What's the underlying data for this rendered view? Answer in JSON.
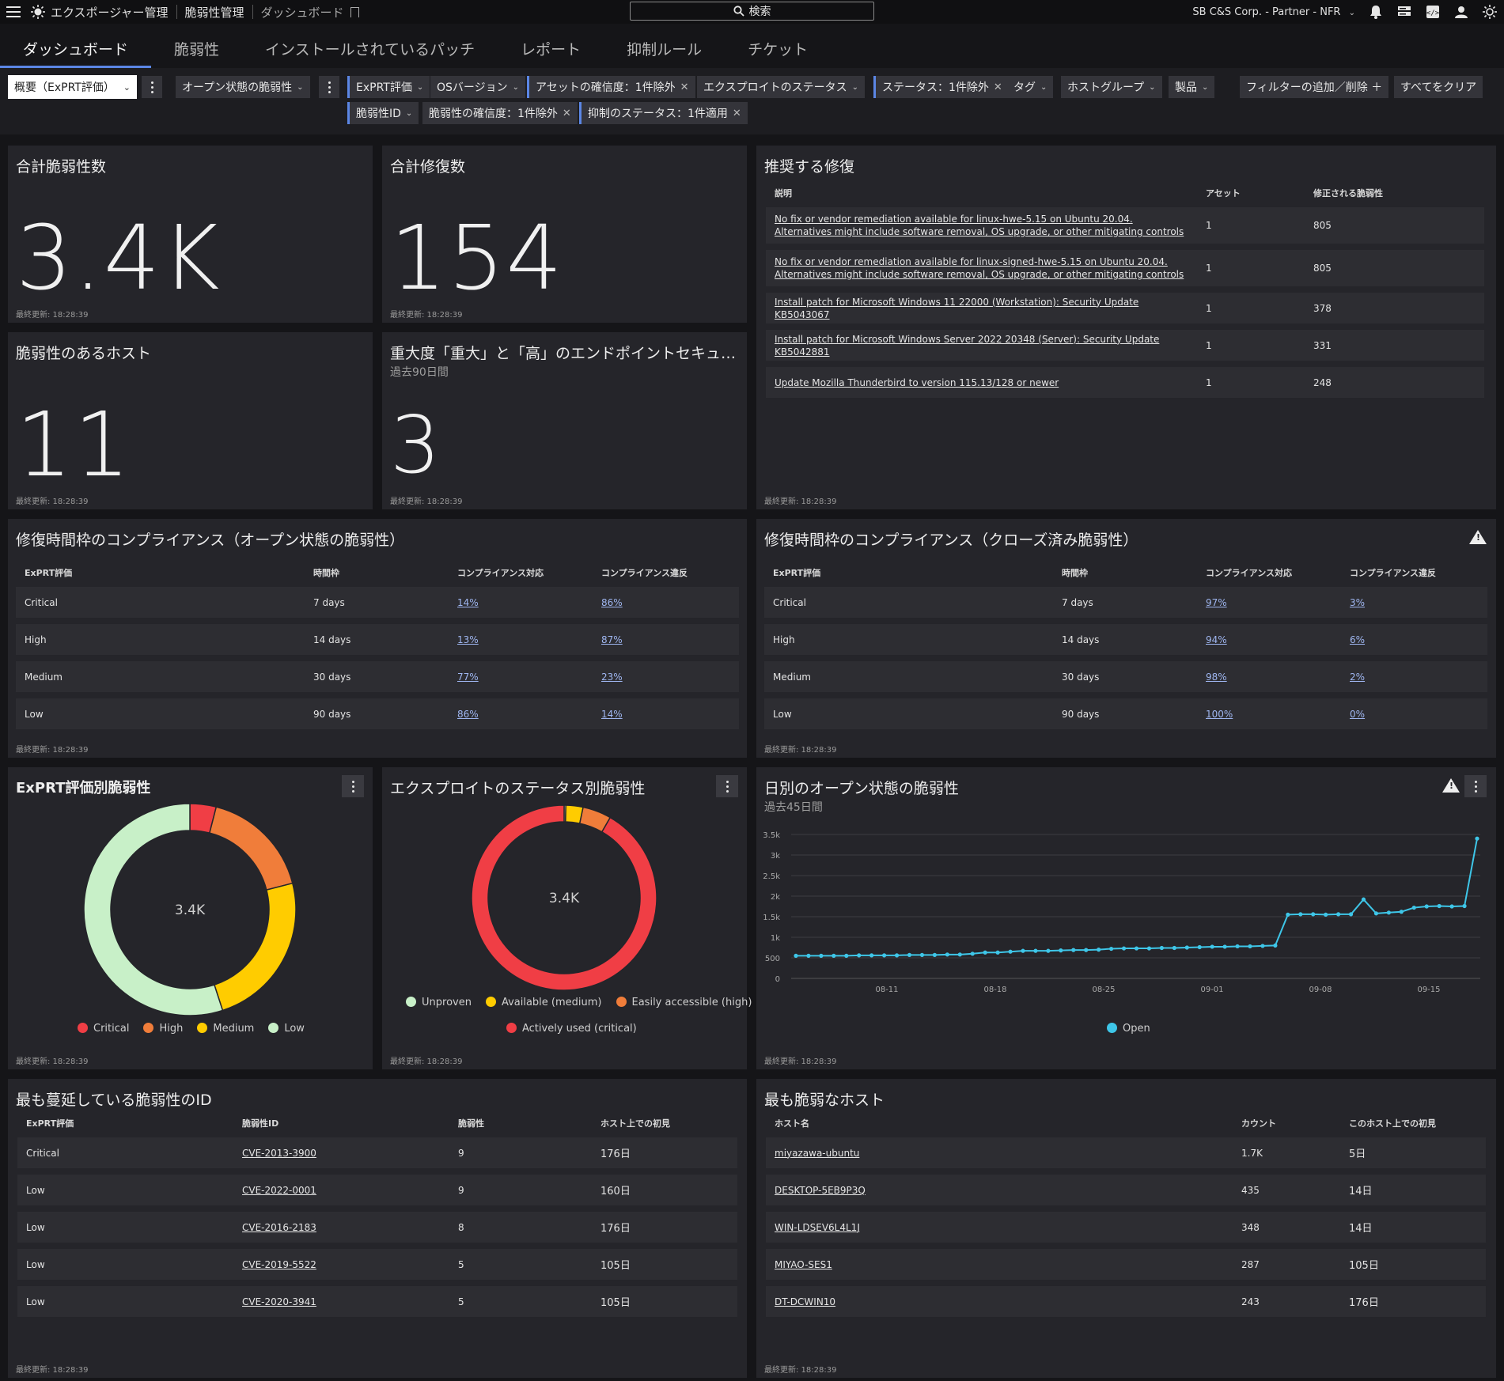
{
  "topbar": {
    "app_name": "エクスポージャー管理",
    "section": "脆弱性管理",
    "page": "ダッシュボード",
    "search_label": "検索",
    "org": "SB C&S Corp. - Partner - NFR"
  },
  "tabs": [
    "ダッシュボード",
    "脆弱性",
    "インストールされているパッチ",
    "レポート",
    "抑制ルール",
    "チケット"
  ],
  "filters": {
    "view_select": "概要（ExPRT評価）",
    "open_vulns": "オープン状態の脆弱性",
    "chips": {
      "exprt": "ExPRT評価",
      "os_version": "OSバージョン",
      "asset_confidence": "アセットの確信度：1件除外",
      "exploit_status": "エクスプロイトのステータス",
      "status": "ステータス：1件除外",
      "tag": "タグ",
      "host_group": "ホストグループ",
      "product": "製品",
      "vuln_id": "脆弱性ID",
      "vuln_confidence": "脆弱性の確信度：1件除外",
      "suppression_status": "抑制のステータス：1件適用"
    },
    "add_remove": "フィルターの追加／削除 ＋",
    "clear_all": "すべてをクリア"
  },
  "updated_label": "最終更新: 18:28:39",
  "cards": {
    "total_vulns": {
      "title": "合計脆弱性数",
      "value": "3.4K"
    },
    "total_remediations": {
      "title": "合計修復数",
      "value": "154"
    },
    "vulnerable_hosts": {
      "title": "脆弱性のあるホスト",
      "value": "11"
    },
    "critical_high": {
      "title": "重大度「重大」と「高」のエンドポイントセキュリ…",
      "subtitle": "過去90日間",
      "value": "3"
    }
  },
  "recommended": {
    "title": "推奨する修復",
    "headers": [
      "説明",
      "アセット",
      "修正される脆弱性"
    ],
    "rows": [
      {
        "desc": "No fix or vendor remediation available for linux-hwe-5.15 on Ubuntu 20.04. Alternatives might include software removal, OS upgrade, or other mitigating controls",
        "assets": "1",
        "fixed": "805"
      },
      {
        "desc": "No fix or vendor remediation available for linux-signed-hwe-5.15 on Ubuntu 20.04. Alternatives might include software removal, OS upgrade, or other mitigating controls",
        "assets": "1",
        "fixed": "805"
      },
      {
        "desc": "Install patch for Microsoft Windows 11 22000 (Workstation): Security Update KB5043067",
        "assets": "1",
        "fixed": "378"
      },
      {
        "desc": "Install patch for Microsoft Windows Server 2022 20348 (Server): Security Update KB5042881",
        "assets": "1",
        "fixed": "331"
      },
      {
        "desc": "Update Mozilla Thunderbird to version 115.13/128 or newer",
        "assets": "1",
        "fixed": "248"
      }
    ]
  },
  "compliance_open": {
    "title": "修復時間枠のコンプライアンス（オープン状態の脆弱性）",
    "headers": [
      "ExPRT評価",
      "時間枠",
      "コンプライアンス対応",
      "コンプライアンス違反"
    ],
    "rows": [
      [
        "Critical",
        "7 days",
        "14%",
        "86%"
      ],
      [
        "High",
        "14 days",
        "13%",
        "87%"
      ],
      [
        "Medium",
        "30 days",
        "77%",
        "23%"
      ],
      [
        "Low",
        "90 days",
        "86%",
        "14%"
      ]
    ]
  },
  "compliance_closed": {
    "title": "修復時間枠のコンプライアンス（クローズ済み脆弱性）",
    "headers": [
      "ExPRT評価",
      "時間枠",
      "コンプライアンス対応",
      "コンプライアンス違反"
    ],
    "rows": [
      [
        "Critical",
        "7 days",
        "97%",
        "3%"
      ],
      [
        "High",
        "14 days",
        "94%",
        "6%"
      ],
      [
        "Medium",
        "30 days",
        "98%",
        "2%"
      ],
      [
        "Low",
        "90 days",
        "100%",
        "0%"
      ]
    ]
  },
  "donut_exprt": {
    "title": "ExPRT評価別脆弱性",
    "center": "3.4K",
    "slices": [
      {
        "name": "Critical",
        "value": 4,
        "color": "#f03e45"
      },
      {
        "name": "High",
        "value": 17,
        "color": "#f07d3a"
      },
      {
        "name": "Medium",
        "value": 24,
        "color": "#ffcc00"
      },
      {
        "name": "Low",
        "value": 55,
        "color": "#c8f0c8"
      }
    ]
  },
  "donut_exploit": {
    "title": "エクスプロイトのステータス別脆弱性",
    "center": "3.4K",
    "slices": [
      {
        "name": "Unproven",
        "value": 0.3,
        "color": "#c8f0c8"
      },
      {
        "name": "Available (medium)",
        "value": 3,
        "color": "#ffcc00"
      },
      {
        "name": "Easily accessible (high)",
        "value": 5,
        "color": "#f07d3a"
      },
      {
        "name": "Actively used (critical)",
        "value": 91.7,
        "color": "#f03e45"
      }
    ]
  },
  "chart_data": {
    "type": "line",
    "title": "日別のオープン状態の脆弱性",
    "subtitle": "過去45日間",
    "series": [
      {
        "name": "Open",
        "color": "#3ec6e8",
        "values": [
          550,
          550,
          550,
          550,
          550,
          560,
          560,
          560,
          560,
          570,
          570,
          570,
          580,
          580,
          600,
          630,
          630,
          650,
          670,
          670,
          670,
          680,
          690,
          690,
          700,
          720,
          730,
          730,
          730,
          740,
          740,
          750,
          760,
          770,
          770,
          780,
          780,
          790,
          800,
          1550,
          1560,
          1560,
          1550,
          1560,
          1560,
          1920,
          1580,
          1600,
          1620,
          1720,
          1750,
          1760,
          1750,
          1760,
          3400
        ]
      }
    ],
    "x_ticks": [
      "08-11",
      "08-18",
      "08-25",
      "09-01",
      "09-08",
      "09-15"
    ],
    "y_ticks": [
      "0",
      "500",
      "1k",
      "1.5k",
      "2k",
      "2.5k",
      "3k",
      "3.5k"
    ],
    "ylim": [
      0,
      3500
    ],
    "legend": "bottom"
  },
  "overdue": {
    "title": "最も蔓延している脆弱性のID",
    "headers": [
      "ExPRT評価",
      "脆弱性ID",
      "脆弱性",
      "ホスト上での初見"
    ],
    "rows": [
      [
        "Critical",
        "CVE-2013-3900",
        "9",
        "176日"
      ],
      [
        "Low",
        "CVE-2022-0001",
        "9",
        "160日"
      ],
      [
        "Low",
        "CVE-2016-2183",
        "8",
        "176日"
      ],
      [
        "Low",
        "CVE-2019-5522",
        "5",
        "105日"
      ],
      [
        "Low",
        "CVE-2020-3941",
        "5",
        "105日"
      ]
    ]
  },
  "hosts": {
    "title": "最も脆弱なホスト",
    "headers": [
      "ホスト名",
      "カウント",
      "このホスト上での初見"
    ],
    "rows": [
      [
        "miyazawa-ubuntu",
        "1.7K",
        "5日"
      ],
      [
        "DESKTOP-5EB9P3Q",
        "435",
        "14日"
      ],
      [
        "WIN-LDSEV6L4L1J",
        "348",
        "14日"
      ],
      [
        "MIYAO-SES1",
        "287",
        "105日"
      ],
      [
        "DT-DCWIN10",
        "243",
        "176日"
      ]
    ]
  }
}
